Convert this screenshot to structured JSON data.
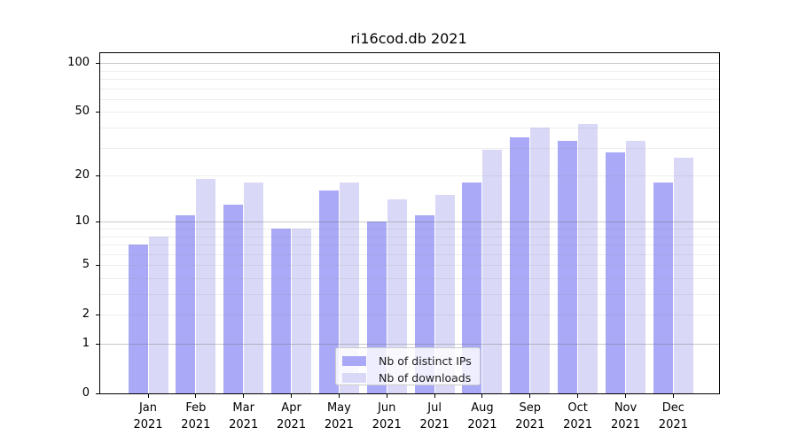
{
  "window": {
    "title": "ri16cod.db 2021"
  },
  "chart_data": {
    "type": "bar",
    "title": "ri16cod.db 2021",
    "categories": [
      "Jan",
      "Feb",
      "Mar",
      "Apr",
      "May",
      "Jun",
      "Jul",
      "Aug",
      "Sep",
      "Oct",
      "Nov",
      "Dec"
    ],
    "year": "2021",
    "series": [
      {
        "name": "Nb of distinct IPs",
        "color": "#a9a9f7",
        "values": [
          7,
          11,
          13,
          9,
          16,
          10,
          11,
          18,
          35,
          33,
          28,
          18
        ]
      },
      {
        "name": "Nb of downloads",
        "color": "#d9d9f7",
        "values": [
          8,
          19,
          18,
          9,
          18,
          14,
          15,
          29,
          40,
          42,
          33,
          26
        ]
      }
    ],
    "yscale": "log10(1+v)",
    "ylim": [
      0,
      115
    ],
    "yticks": [
      0,
      1,
      2,
      5,
      10,
      20,
      50,
      100
    ],
    "ytick_labels": [
      "0",
      "1",
      "2",
      "5",
      "10",
      "20",
      "50",
      "100"
    ],
    "grid": {
      "major_values": [
        1,
        10,
        100
      ],
      "minor_values": [
        2,
        3,
        4,
        5,
        6,
        7,
        8,
        9,
        20,
        30,
        40,
        50,
        60,
        70,
        80,
        90
      ]
    },
    "legend": {
      "position": "bottom-center",
      "entries": [
        "Nb of distinct IPs",
        "Nb of downloads"
      ]
    }
  }
}
